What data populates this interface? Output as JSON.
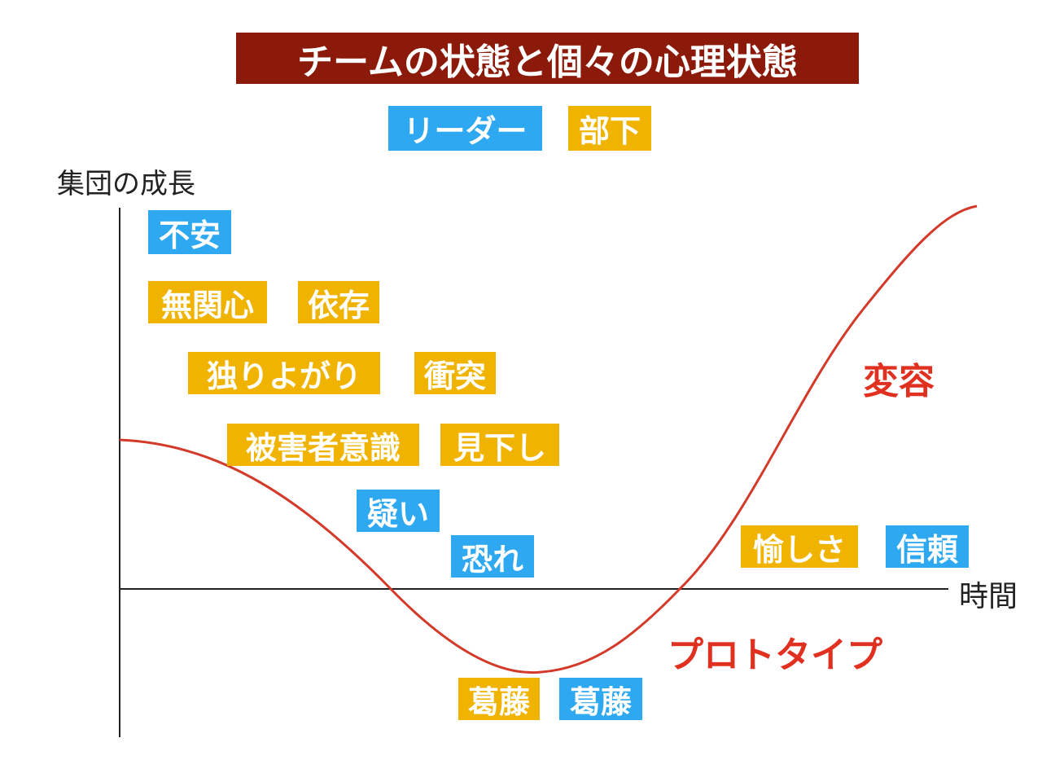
{
  "title": "チームの状態と個々の心理状態",
  "y_axis_label": "集団の成長",
  "x_axis_label": "時間",
  "groups": [
    {
      "label": "リーダー",
      "color": "#2ea8f0",
      "items": [
        "不安",
        "疑い",
        "恐れ",
        "信頼",
        "葛藤"
      ]
    },
    {
      "label": "部下",
      "color": "#f0b400",
      "items": [
        "無関心",
        "依存",
        "独りよがり",
        "衝突",
        "被害者意識",
        "見下し",
        "愉しさ",
        "葛藤"
      ]
    }
  ],
  "annotations": [
    "変容",
    "プロトタイプ"
  ]
}
